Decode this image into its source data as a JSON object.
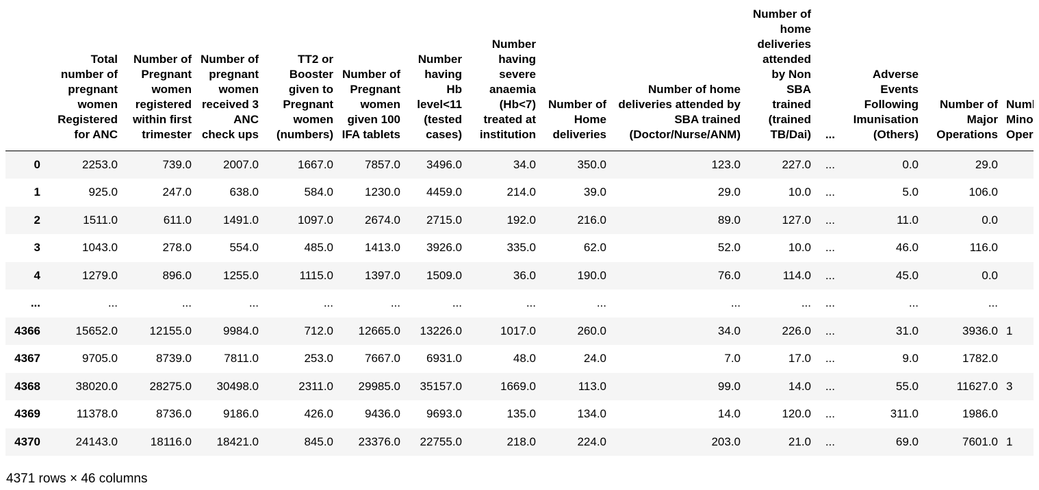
{
  "table": {
    "columns": [
      "",
      "Total number of pregnant women Registered for ANC",
      "Number of Pregnant women registered within first trimester",
      "Number of pregnant women received 3 ANC check ups",
      "TT2 or Booster given to Pregnant women (numbers)",
      "Number of Pregnant women given 100 IFA tablets",
      "Number having Hb level<11 (tested cases)",
      "Number having severe anaemia (Hb<7) treated at institution",
      "Number of Home deliveries",
      "Number of home deliveries attended by SBA trained (Doctor/Nurse/ANM)",
      "Number of home deliveries attended by Non SBA trained (trained TB/Dai)",
      "...",
      "Adverse Events Following Imunisation (Others)",
      "Number of Major Operations",
      "Number of Minor Operations"
    ],
    "rows": [
      [
        "0",
        "2253.0",
        "739.0",
        "2007.0",
        "1667.0",
        "7857.0",
        "3496.0",
        "34.0",
        "350.0",
        "123.0",
        "227.0",
        "...",
        "0.0",
        "29.0",
        ""
      ],
      [
        "1",
        "925.0",
        "247.0",
        "638.0",
        "584.0",
        "1230.0",
        "4459.0",
        "214.0",
        "39.0",
        "29.0",
        "10.0",
        "...",
        "5.0",
        "106.0",
        ""
      ],
      [
        "2",
        "1511.0",
        "611.0",
        "1491.0",
        "1097.0",
        "2674.0",
        "2715.0",
        "192.0",
        "216.0",
        "89.0",
        "127.0",
        "...",
        "11.0",
        "0.0",
        ""
      ],
      [
        "3",
        "1043.0",
        "278.0",
        "554.0",
        "485.0",
        "1413.0",
        "3926.0",
        "335.0",
        "62.0",
        "52.0",
        "10.0",
        "...",
        "46.0",
        "116.0",
        ""
      ],
      [
        "4",
        "1279.0",
        "896.0",
        "1255.0",
        "1115.0",
        "1397.0",
        "1509.0",
        "36.0",
        "190.0",
        "76.0",
        "114.0",
        "...",
        "45.0",
        "0.0",
        ""
      ],
      [
        "...",
        "...",
        "...",
        "...",
        "...",
        "...",
        "...",
        "...",
        "...",
        "...",
        "...",
        "...",
        "...",
        "...",
        ""
      ],
      [
        "4366",
        "15652.0",
        "12155.0",
        "9984.0",
        "712.0",
        "12665.0",
        "13226.0",
        "1017.0",
        "260.0",
        "34.0",
        "226.0",
        "...",
        "31.0",
        "3936.0",
        "1"
      ],
      [
        "4367",
        "9705.0",
        "8739.0",
        "7811.0",
        "253.0",
        "7667.0",
        "6931.0",
        "48.0",
        "24.0",
        "7.0",
        "17.0",
        "...",
        "9.0",
        "1782.0",
        ""
      ],
      [
        "4368",
        "38020.0",
        "28275.0",
        "30498.0",
        "2311.0",
        "29985.0",
        "35157.0",
        "1669.0",
        "113.0",
        "99.0",
        "14.0",
        "...",
        "55.0",
        "11627.0",
        "3"
      ],
      [
        "4369",
        "11378.0",
        "8736.0",
        "9186.0",
        "426.0",
        "9436.0",
        "9693.0",
        "135.0",
        "134.0",
        "14.0",
        "120.0",
        "...",
        "311.0",
        "1986.0",
        ""
      ],
      [
        "4370",
        "24143.0",
        "18116.0",
        "18421.0",
        "845.0",
        "23376.0",
        "22755.0",
        "218.0",
        "224.0",
        "203.0",
        "21.0",
        "...",
        "69.0",
        "7601.0",
        "1"
      ]
    ]
  },
  "footer": {
    "shape": "4371 rows × 46 columns"
  }
}
